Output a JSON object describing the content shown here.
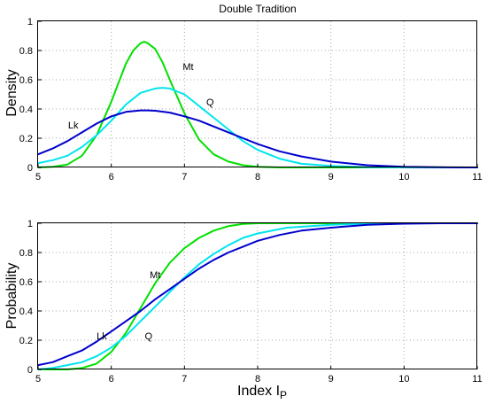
{
  "chart_data": [
    {
      "type": "line",
      "title": "Double Tradition",
      "xlabel": "",
      "ylabel": "Density",
      "xlim": [
        5,
        11
      ],
      "ylim": [
        0,
        1
      ],
      "xticks": [
        "5",
        "6",
        "7",
        "8",
        "9",
        "10",
        "11"
      ],
      "yticks": [
        "0",
        "0.2",
        "0.4",
        "0.6",
        "0.8",
        "1"
      ],
      "grid": true,
      "series": [
        {
          "name": "Mt",
          "color": "#00e000",
          "x": [
            5.0,
            5.2,
            5.4,
            5.6,
            5.8,
            6.0,
            6.1,
            6.2,
            6.3,
            6.4,
            6.45,
            6.5,
            6.6,
            6.7,
            6.8,
            7.0,
            7.2,
            7.4,
            7.6,
            7.8,
            8.0,
            8.3,
            9.0,
            11.0
          ],
          "y": [
            0.0,
            0.004,
            0.02,
            0.08,
            0.22,
            0.45,
            0.58,
            0.71,
            0.8,
            0.85,
            0.86,
            0.85,
            0.81,
            0.72,
            0.6,
            0.37,
            0.19,
            0.09,
            0.04,
            0.015,
            0.005,
            0.0,
            0.0,
            0.0
          ]
        },
        {
          "name": "Q",
          "color": "#00e5ee",
          "x": [
            5.0,
            5.2,
            5.4,
            5.6,
            5.8,
            6.0,
            6.2,
            6.4,
            6.6,
            6.7,
            6.8,
            7.0,
            7.2,
            7.4,
            7.6,
            7.8,
            8.0,
            8.3,
            8.6,
            9.0,
            9.5,
            10.0,
            11.0
          ],
          "y": [
            0.03,
            0.05,
            0.08,
            0.14,
            0.22,
            0.32,
            0.43,
            0.51,
            0.54,
            0.545,
            0.54,
            0.5,
            0.42,
            0.34,
            0.26,
            0.18,
            0.12,
            0.06,
            0.025,
            0.01,
            0.002,
            0.0,
            0.0
          ]
        },
        {
          "name": "Lk",
          "color": "#0000cd",
          "x": [
            5.0,
            5.2,
            5.4,
            5.6,
            5.8,
            6.0,
            6.2,
            6.4,
            6.5,
            6.6,
            6.8,
            7.0,
            7.2,
            7.4,
            7.6,
            7.8,
            8.0,
            8.3,
            8.6,
            9.0,
            9.5,
            10.0,
            10.5,
            11.0
          ],
          "y": [
            0.09,
            0.13,
            0.18,
            0.24,
            0.3,
            0.35,
            0.38,
            0.39,
            0.39,
            0.388,
            0.375,
            0.35,
            0.32,
            0.28,
            0.24,
            0.2,
            0.16,
            0.11,
            0.075,
            0.04,
            0.015,
            0.005,
            0.001,
            0.0
          ]
        }
      ],
      "annotations": [
        {
          "text": "Mt",
          "x": 7.05,
          "y": 0.69
        },
        {
          "text": "Q",
          "x": 7.35,
          "y": 0.45
        },
        {
          "text": "Lk",
          "x": 5.48,
          "y": 0.29
        }
      ]
    },
    {
      "type": "line",
      "title": "",
      "xlabel": "Index I",
      "xlabel_sub": "P",
      "ylabel": "Probability",
      "xlim": [
        5,
        11
      ],
      "ylim": [
        0,
        1
      ],
      "xticks": [
        "5",
        "6",
        "7",
        "8",
        "9",
        "10",
        "11"
      ],
      "yticks": [
        "0",
        "0.2",
        "0.4",
        "0.6",
        "0.8",
        "1"
      ],
      "grid": true,
      "series": [
        {
          "name": "Mt",
          "color": "#00e000",
          "x": [
            5.0,
            5.4,
            5.6,
            5.8,
            6.0,
            6.2,
            6.4,
            6.6,
            6.8,
            7.0,
            7.2,
            7.4,
            7.6,
            7.8,
            8.0,
            8.3,
            11.0
          ],
          "y": [
            0.0,
            0.0,
            0.01,
            0.04,
            0.12,
            0.25,
            0.42,
            0.59,
            0.73,
            0.83,
            0.9,
            0.95,
            0.98,
            0.995,
            1.0,
            1.0,
            1.0
          ]
        },
        {
          "name": "Q",
          "color": "#00e5ee",
          "x": [
            5.0,
            5.2,
            5.4,
            5.6,
            5.8,
            6.0,
            6.2,
            6.4,
            6.6,
            6.8,
            7.0,
            7.2,
            7.4,
            7.6,
            7.8,
            8.0,
            8.4,
            9.0,
            9.5,
            10.0,
            11.0
          ],
          "y": [
            0.0,
            0.01,
            0.03,
            0.05,
            0.09,
            0.15,
            0.23,
            0.33,
            0.43,
            0.53,
            0.63,
            0.72,
            0.79,
            0.85,
            0.9,
            0.93,
            0.97,
            0.99,
            0.997,
            1.0,
            1.0
          ]
        },
        {
          "name": "Lk",
          "color": "#0000cd",
          "x": [
            5.0,
            5.2,
            5.4,
            5.6,
            5.8,
            6.0,
            6.2,
            6.4,
            6.6,
            6.8,
            7.0,
            7.2,
            7.4,
            7.6,
            7.8,
            8.0,
            8.3,
            8.6,
            9.0,
            9.5,
            10.0,
            10.5,
            11.0
          ],
          "y": [
            0.03,
            0.05,
            0.09,
            0.13,
            0.19,
            0.26,
            0.33,
            0.4,
            0.48,
            0.55,
            0.62,
            0.69,
            0.75,
            0.8,
            0.84,
            0.88,
            0.92,
            0.95,
            0.97,
            0.99,
            0.997,
            1.0,
            1.0
          ]
        }
      ],
      "annotations": [
        {
          "text": "Mt",
          "x": 6.6,
          "y": 0.65
        },
        {
          "text": "Q",
          "x": 6.51,
          "y": 0.23
        },
        {
          "text": "Lk",
          "x": 5.87,
          "y": 0.23
        }
      ]
    }
  ]
}
